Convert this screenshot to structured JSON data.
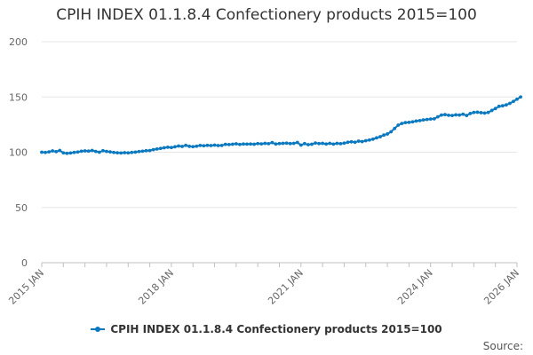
{
  "chart_data": {
    "type": "line",
    "title": "CPIH INDEX 01.1.8.4 Confectionery products 2015=100",
    "xlabel": "",
    "ylabel": "",
    "ylim": [
      0,
      200
    ],
    "yticks": [
      0,
      50,
      100,
      150,
      200
    ],
    "x_range_months": [
      0,
      132
    ],
    "xticks": [
      {
        "label": "2015 JAN",
        "month": 0
      },
      {
        "label": "2018 JAN",
        "month": 36
      },
      {
        "label": "2021 JAN",
        "month": 72
      },
      {
        "label": "2024 JAN",
        "month": 108
      },
      {
        "label": "2026 JAN",
        "month": 132
      }
    ],
    "series": [
      {
        "name": "CPIH INDEX 01.1.8.4 Confectionery products 2015=100",
        "color": "#0b79bf",
        "start": "2015 JAN",
        "values": [
          100.0,
          99.8,
          100.3,
          101.2,
          100.5,
          101.6,
          99.4,
          99.0,
          99.3,
          99.8,
          100.2,
          100.9,
          101.2,
          101.0,
          101.6,
          100.7,
          100.0,
          101.4,
          100.7,
          100.3,
          99.8,
          99.5,
          99.3,
          99.6,
          99.4,
          99.8,
          100.1,
          100.6,
          100.9,
          101.4,
          101.5,
          102.3,
          102.9,
          103.4,
          104.0,
          104.5,
          104.2,
          104.9,
          105.6,
          105.2,
          106.2,
          105.3,
          105.0,
          105.4,
          106.1,
          105.8,
          106.2,
          106.0,
          106.4,
          106.0,
          106.1,
          107.1,
          106.9,
          107.2,
          107.6,
          107.0,
          107.4,
          107.3,
          107.4,
          107.2,
          107.8,
          107.5,
          108.0,
          107.7,
          108.7,
          107.4,
          107.8,
          108.0,
          108.2,
          107.8,
          108.0,
          108.8,
          106.4,
          107.8,
          106.8,
          107.2,
          108.3,
          107.8,
          108.0,
          107.4,
          108.0,
          107.3,
          108.0,
          107.7,
          108.2,
          109.0,
          109.4,
          109.0,
          110.0,
          109.6,
          110.4,
          111.0,
          111.8,
          113.0,
          114.0,
          115.5,
          116.5,
          118.5,
          121.5,
          124.5,
          126.0,
          126.8,
          127.0,
          127.5,
          128.2,
          128.6,
          129.2,
          129.6,
          130.0,
          130.2,
          132.0,
          133.6,
          134.0,
          133.4,
          133.2,
          133.8,
          133.6,
          134.4,
          133.2,
          135.0,
          136.0,
          136.2,
          135.8,
          135.4,
          136.0,
          137.8,
          139.5,
          141.5,
          142.0,
          142.8,
          144.2,
          146.0,
          148.0,
          150.0
        ]
      }
    ],
    "legend": "bottom-center",
    "source_label": "Source:"
  }
}
